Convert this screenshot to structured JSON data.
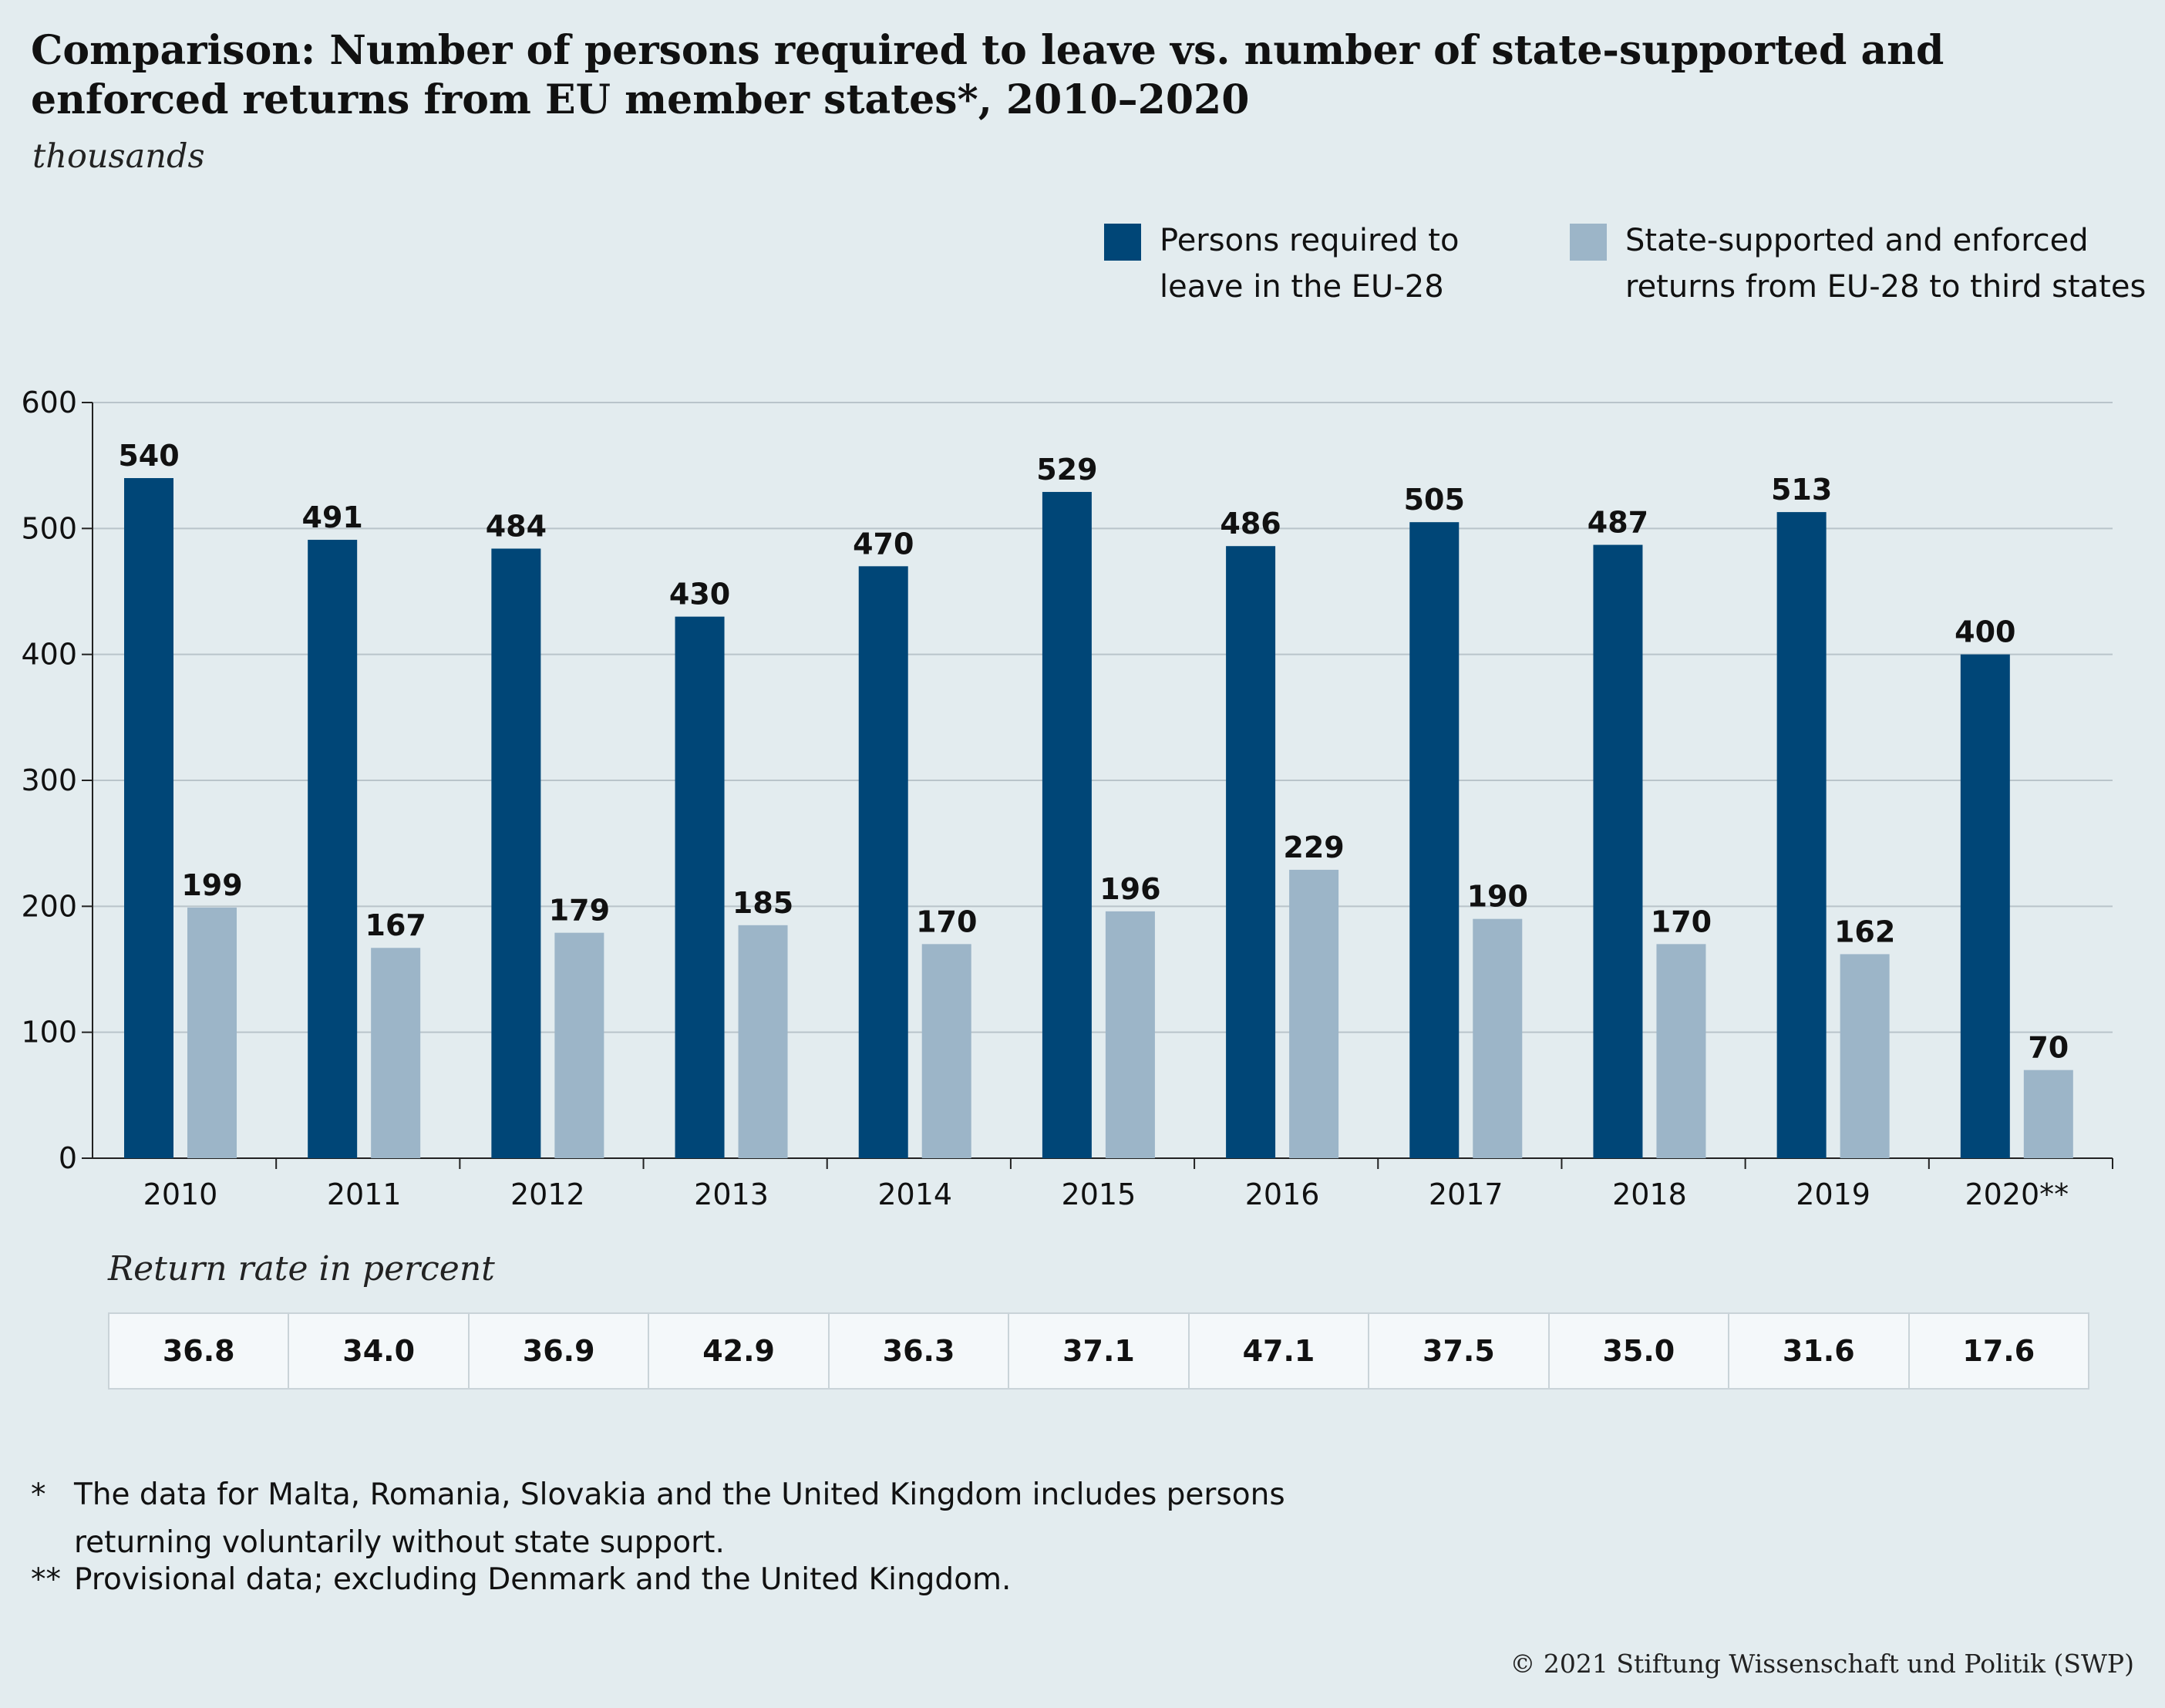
{
  "title": "Comparison: Number of persons required to leave vs. number of state-supported and enforced returns from EU member states*, 2010–2020",
  "unit_label": "thousands",
  "legend": [
    {
      "label": "Persons required to leave in the EU-28",
      "color": "#004677"
    },
    {
      "label": "State-supported and enforced returns from EU-28 to third states",
      "color": "#9cb5c8"
    }
  ],
  "chart_data": {
    "type": "bar",
    "categories": [
      "2010",
      "2011",
      "2012",
      "2013",
      "2014",
      "2015",
      "2016",
      "2017",
      "2018",
      "2019",
      "2020**"
    ],
    "series": [
      {
        "name": "Persons required to leave in the EU-28",
        "values": [
          540,
          491,
          484,
          430,
          470,
          529,
          486,
          505,
          487,
          513,
          400
        ],
        "color": "#004677"
      },
      {
        "name": "State-supported and enforced returns from EU-28 to third states",
        "values": [
          199,
          167,
          179,
          185,
          170,
          196,
          229,
          190,
          170,
          162,
          70
        ],
        "color": "#9cb5c8"
      }
    ],
    "ylim": [
      0,
      600
    ],
    "yticks": [
      0,
      100,
      200,
      300,
      400,
      500,
      600
    ],
    "grid": true,
    "legend_position": "top-right"
  },
  "return_rate": {
    "title": "Return rate in percent",
    "values": [
      "36.8",
      "34.0",
      "36.9",
      "42.9",
      "36.3",
      "37.1",
      "47.1",
      "37.5",
      "35.0",
      "31.6",
      "17.6"
    ]
  },
  "footnotes": [
    {
      "mark": "*",
      "text": "The data for Malta, Romania, Slovakia and the United Kingdom includes persons returning voluntarily without state support."
    },
    {
      "mark": "**",
      "text": "Provisional data; excluding Denmark and the United Kingdom."
    }
  ],
  "source": "© 2021 Stiftung Wissenschaft und Politik (SWP)"
}
